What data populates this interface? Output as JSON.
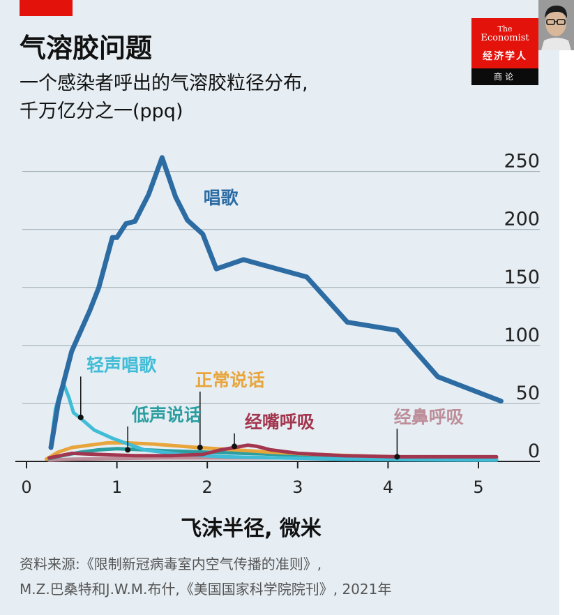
{
  "header": {
    "subtitle_line1": "一个感染者呼出的气溶胶粒径分布,",
    "subtitle_line2": "千万亿分之一(ppq)"
  },
  "logo": {
    "the": "The",
    "name": "Economist",
    "cn": "经济学人",
    "column": "商论"
  },
  "footer": {
    "source_line1": "资料来源:《限制新冠病毒室内空气传播的准则》,",
    "source_line2": "M.Z.巴桑特和J.W.M.布什,《美国国家科学院院刊》, 2021年"
  },
  "chart_data": {
    "type": "line",
    "title": "气溶胶问题",
    "xlabel": "飞沫半径, 微米",
    "ylabel": "",
    "xlim": [
      0,
      5.3
    ],
    "ylim": [
      0,
      260
    ],
    "x_ticks": [
      0,
      1,
      2,
      3,
      4,
      5
    ],
    "y_ticks": [
      0,
      50,
      100,
      150,
      200,
      250
    ],
    "grid": true,
    "y_axis_side": "right",
    "series": [
      {
        "name": "唱歌",
        "color": "#2c6ca3",
        "x": [
          0.27,
          0.35,
          0.5,
          0.7,
          0.8,
          0.95,
          1.0,
          1.1,
          1.2,
          1.35,
          1.5,
          1.65,
          1.78,
          1.95,
          2.1,
          2.4,
          3.1,
          3.55,
          4.1,
          4.55,
          5.25
        ],
        "y": [
          12,
          50,
          95,
          130,
          150,
          193,
          193,
          205,
          207,
          230,
          262,
          228,
          208,
          196,
          166,
          174,
          159,
          120,
          113,
          73,
          52
        ]
      },
      {
        "name": "轻声唱歌",
        "color": "#41bcd6",
        "x": [
          0.28,
          0.32,
          0.38,
          0.42,
          0.47,
          0.52,
          0.6,
          0.75,
          0.95,
          1.3,
          1.7,
          2.2,
          2.8,
          3.5,
          4.2,
          5.2
        ],
        "y": [
          20,
          45,
          62,
          65,
          55,
          42,
          37,
          27,
          20,
          10,
          6,
          4,
          3,
          2,
          1.5,
          1
        ]
      },
      {
        "name": "正常说话",
        "color": "#e8a53b",
        "x": [
          0.22,
          0.35,
          0.5,
          0.7,
          0.9,
          1.1,
          1.4,
          1.9,
          2.3,
          2.7,
          3.2,
          4.0,
          5.2
        ],
        "y": [
          2,
          8,
          12,
          14,
          16,
          16,
          15,
          12,
          10,
          8,
          6,
          4,
          3
        ]
      },
      {
        "name": "低声说话",
        "color": "#2c9ea0",
        "x": [
          0.22,
          0.4,
          0.6,
          0.8,
          1.0,
          1.3,
          1.6,
          2.0,
          2.4,
          2.8,
          3.4,
          4.2,
          5.2
        ],
        "y": [
          2,
          5,
          8,
          10,
          11,
          10,
          9,
          8,
          7,
          6,
          4,
          3,
          2
        ]
      },
      {
        "name": "经嘴呼吸",
        "color": "#a3364f",
        "x": [
          0.25,
          0.5,
          0.8,
          1.2,
          1.6,
          1.95,
          2.15,
          2.3,
          2.45,
          2.55,
          2.7,
          3.0,
          3.5,
          4.1,
          5.2
        ],
        "y": [
          3,
          7,
          6,
          5,
          5,
          6,
          10,
          12,
          14,
          13,
          10,
          7,
          5,
          4,
          4
        ]
      },
      {
        "name": "经鼻呼吸",
        "color": "#bd8e99",
        "x": [
          0.25,
          0.5,
          1.0,
          1.5,
          2.0,
          2.5,
          3.0,
          3.5,
          4.1,
          4.6,
          5.2
        ],
        "y": [
          1,
          2,
          2.5,
          3,
          3,
          3,
          3,
          3,
          3,
          3,
          3
        ]
      }
    ],
    "annotations": [
      {
        "series": "唱歌",
        "text": "唱歌",
        "x": 2.15,
        "y": 222,
        "leader": false
      },
      {
        "series": "轻声唱歌",
        "text": "轻声唱歌",
        "x": 1.05,
        "y": 78,
        "leader": true,
        "point_x": 0.6,
        "point_y": 38
      },
      {
        "series": "正常说话",
        "text": "正常说话",
        "x": 2.25,
        "y": 65,
        "leader": true,
        "point_x": 1.92,
        "point_y": 12
      },
      {
        "series": "低声说话",
        "text": "低声说话",
        "x": 1.55,
        "y": 35,
        "leader": true,
        "point_x": 1.12,
        "point_y": 10
      },
      {
        "series": "经嘴呼吸",
        "text": "经嘴呼吸",
        "x": 2.8,
        "y": 29,
        "leader": true,
        "point_x": 2.3,
        "point_y": 13
      },
      {
        "series": "经鼻呼吸",
        "text": "经鼻呼吸",
        "x": 4.45,
        "y": 33,
        "leader": true,
        "point_x": 4.1,
        "point_y": 4
      }
    ]
  }
}
